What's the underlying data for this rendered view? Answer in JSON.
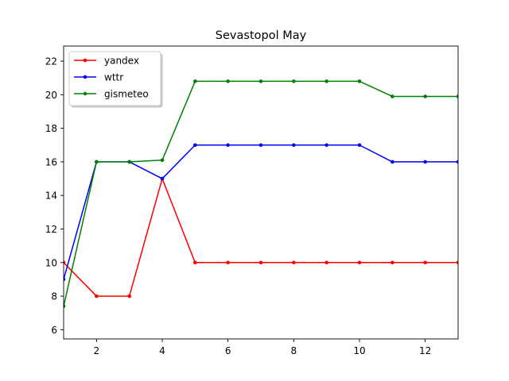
{
  "chart_data": {
    "type": "line",
    "title": "Sevastopol May",
    "xlabel": "",
    "ylabel": "",
    "x": [
      1,
      2,
      3,
      4,
      5,
      6,
      7,
      8,
      9,
      10,
      11,
      12,
      13
    ],
    "xlim": [
      1,
      13
    ],
    "ylim": [
      5.45,
      22.9
    ],
    "xticks": [
      2,
      4,
      6,
      8,
      10,
      12
    ],
    "yticks": [
      6,
      8,
      10,
      12,
      14,
      16,
      18,
      20,
      22
    ],
    "grid": false,
    "legend_position": "top-left",
    "series": [
      {
        "name": "yandex",
        "color": "#ff0000",
        "values": [
          10,
          8,
          8,
          15,
          10,
          10,
          10,
          10,
          10,
          10,
          10,
          10,
          10
        ]
      },
      {
        "name": "wttr",
        "color": "#0000ff",
        "values": [
          9,
          16,
          16,
          15,
          17,
          17,
          17,
          17,
          17,
          17,
          16,
          16,
          16
        ]
      },
      {
        "name": "gismeteo",
        "color": "#008000",
        "values": [
          7.4,
          16,
          16,
          16.1,
          20.8,
          20.8,
          20.8,
          20.8,
          20.8,
          20.8,
          19.9,
          19.9,
          19.9
        ]
      }
    ]
  }
}
